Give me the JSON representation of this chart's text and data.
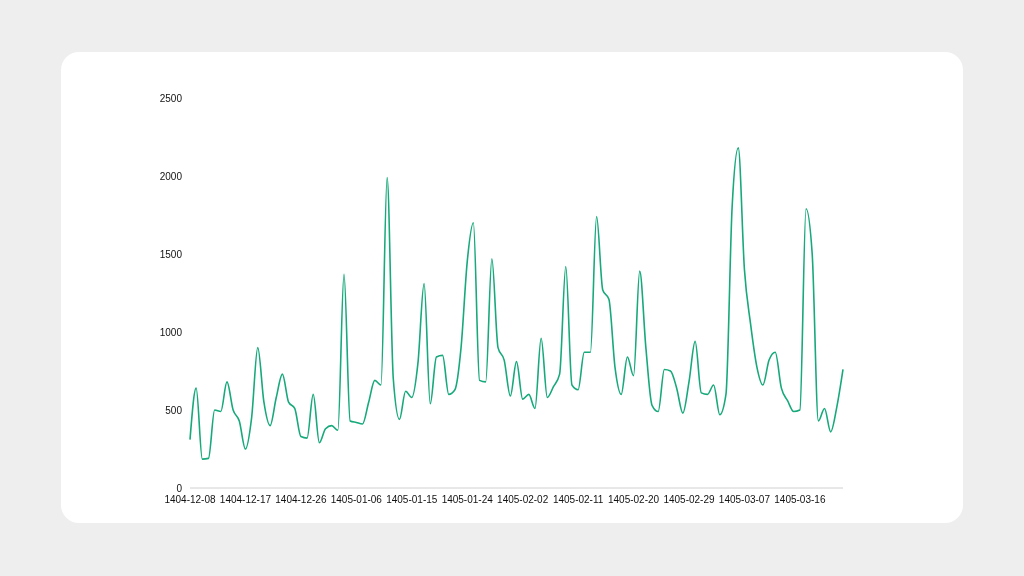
{
  "chart_data": {
    "type": "line",
    "categories": [
      "1404-12-08",
      null,
      null,
      null,
      null,
      null,
      null,
      null,
      null,
      "1404-12-17",
      null,
      null,
      null,
      null,
      null,
      null,
      null,
      null,
      "1404-12-26",
      null,
      null,
      null,
      null,
      null,
      null,
      null,
      null,
      "1405-01-06",
      null,
      null,
      null,
      null,
      null,
      null,
      null,
      null,
      "1405-01-15",
      null,
      null,
      null,
      null,
      null,
      null,
      null,
      null,
      "1405-01-24",
      null,
      null,
      null,
      null,
      null,
      null,
      null,
      null,
      "1405-02-02",
      null,
      null,
      null,
      null,
      null,
      null,
      null,
      null,
      "1405-02-11",
      null,
      null,
      null,
      null,
      null,
      null,
      null,
      null,
      "1405-02-20",
      null,
      null,
      null,
      null,
      null,
      null,
      null,
      null,
      "1405-02-29",
      null,
      null,
      null,
      null,
      null,
      null,
      null,
      null,
      "1405-03-07",
      null,
      null,
      null,
      null,
      null,
      null,
      null,
      null,
      "1405-03-16",
      null,
      null,
      null,
      null,
      null,
      null,
      null
    ],
    "series": [
      {
        "color": "#17a97b",
        "values": [
          310,
          640,
          185,
          190,
          500,
          490,
          680,
          500,
          430,
          250,
          450,
          900,
          550,
          400,
          580,
          730,
          550,
          510,
          330,
          320,
          600,
          290,
          380,
          400,
          370,
          1370,
          430,
          420,
          410,
          550,
          690,
          660,
          1990,
          700,
          440,
          620,
          580,
          800,
          1310,
          540,
          840,
          850,
          600,
          630,
          900,
          1450,
          1700,
          690,
          680,
          1470,
          900,
          820,
          590,
          810,
          570,
          600,
          510,
          960,
          580,
          650,
          730,
          1420,
          660,
          630,
          870,
          870,
          1740,
          1270,
          1210,
          770,
          600,
          840,
          720,
          1390,
          900,
          530,
          490,
          760,
          750,
          640,
          480,
          680,
          940,
          610,
          600,
          660,
          470,
          600,
          1800,
          2180,
          1400,
          1050,
          780,
          660,
          820,
          870,
          640,
          560,
          490,
          500,
          1790,
          1500,
          430,
          510,
          360,
          520,
          760
        ]
      }
    ],
    "ylim": [
      0,
      2500
    ],
    "yticks": [
      0,
      500,
      1000,
      1500,
      2000,
      2500
    ],
    "grid": false,
    "legend": false,
    "marker": "none",
    "line_style": "solid"
  }
}
